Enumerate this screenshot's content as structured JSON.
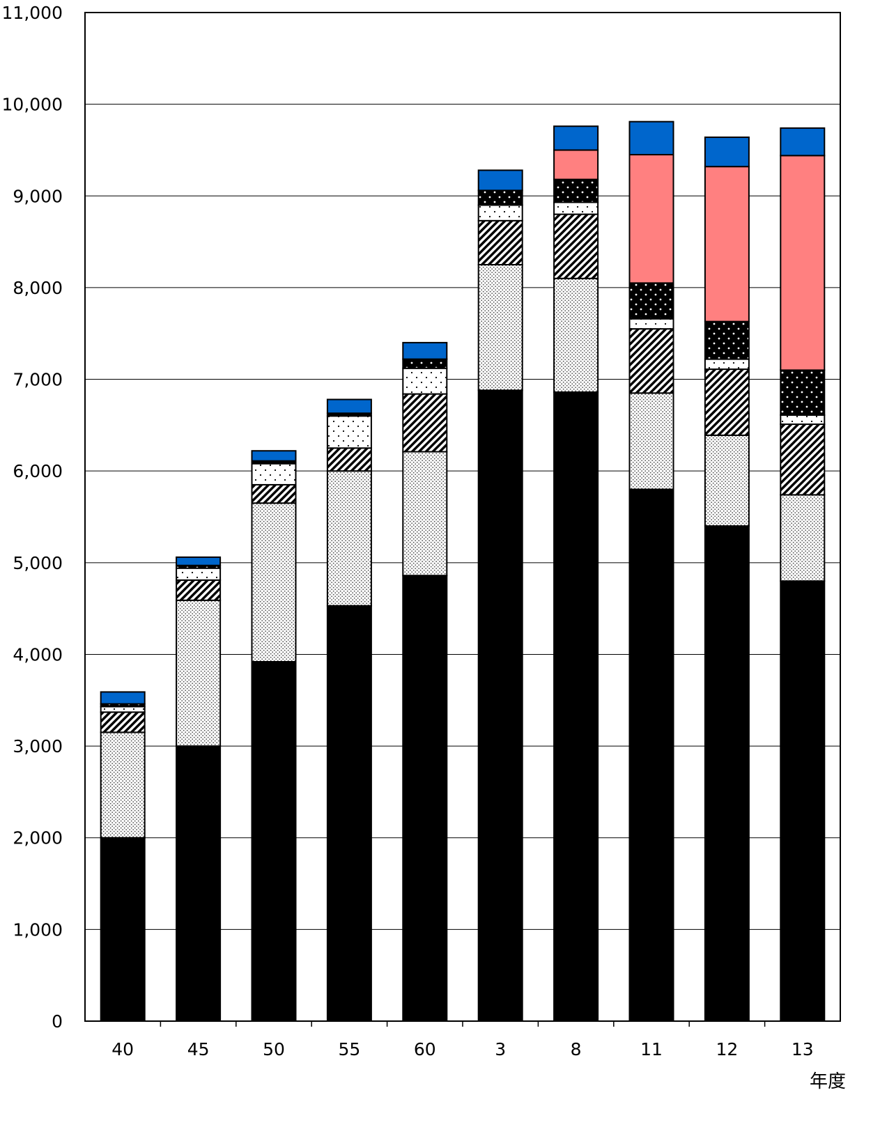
{
  "chart_data": {
    "type": "bar",
    "stacked": true,
    "title": "",
    "xlabel": "年度",
    "ylabel": "",
    "ylim": [
      0,
      11000
    ],
    "yticks": [
      0,
      1000,
      2000,
      3000,
      4000,
      5000,
      6000,
      7000,
      8000,
      9000,
      10000,
      11000
    ],
    "ytick_labels": [
      "0",
      "1,000",
      "2,000",
      "3,000",
      "4,000",
      "5,000",
      "6,000",
      "7,000",
      "8,000",
      "9,000",
      "10,000",
      "11,000"
    ],
    "grid": true,
    "legend": "none",
    "categories": [
      "40",
      "45",
      "50",
      "55",
      "60",
      "3",
      "8",
      "11",
      "12",
      "13"
    ],
    "series": [
      {
        "pattern": "solid-black",
        "values": [
          2000,
          3000,
          3920,
          4530,
          4860,
          6880,
          6860,
          5800,
          5400,
          4800
        ]
      },
      {
        "pattern": "fine-dots",
        "values": [
          1150,
          1590,
          1730,
          1470,
          1350,
          1370,
          1240,
          1050,
          990,
          940
        ]
      },
      {
        "pattern": "diagonal-hatch",
        "values": [
          220,
          220,
          200,
          250,
          630,
          480,
          700,
          700,
          720,
          770
        ]
      },
      {
        "pattern": "sparse-dots-white",
        "values": [
          60,
          130,
          230,
          350,
          280,
          170,
          130,
          110,
          110,
          100
        ]
      },
      {
        "pattern": "dots-on-black",
        "values": [
          30,
          30,
          30,
          30,
          100,
          160,
          250,
          390,
          410,
          490
        ]
      },
      {
        "pattern": "pink",
        "color": "#ff8080",
        "values": [
          0,
          0,
          0,
          0,
          0,
          0,
          320,
          1400,
          1690,
          2340
        ]
      },
      {
        "pattern": "blue",
        "color": "#0066cc",
        "values": [
          130,
          90,
          110,
          150,
          180,
          220,
          260,
          360,
          320,
          300
        ]
      }
    ]
  }
}
